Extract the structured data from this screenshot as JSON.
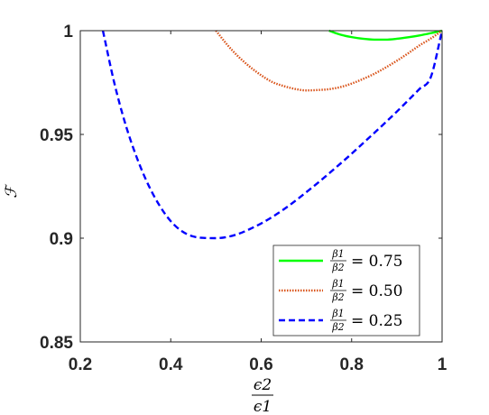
{
  "chart_data": {
    "type": "line",
    "title": "",
    "xlabel": {
      "numerator": "ϵ2",
      "denominator": "ϵ1"
    },
    "ylabel": "ℱ",
    "xlim": [
      0.2,
      1.0
    ],
    "ylim": [
      0.85,
      1.0
    ],
    "xticks": [
      0.2,
      0.4,
      0.6,
      0.8,
      1
    ],
    "xtick_labels": [
      "0.2",
      "0.4",
      "0.6",
      "0.8",
      "1"
    ],
    "yticks": [
      0.85,
      0.9,
      0.95,
      1
    ],
    "ytick_labels": [
      "0.85",
      "0.9",
      "0.95",
      "1"
    ],
    "grid": false,
    "legend_position": "bottom-right",
    "series": [
      {
        "name": "β1/β2 = 0.75",
        "legend_num": "β1",
        "legend_den": "β2",
        "legend_value": "= 0.75",
        "color": "#00ff00",
        "style": "solid",
        "x": [
          0.75,
          0.775,
          0.8,
          0.825,
          0.85,
          0.875,
          0.9,
          0.925,
          0.95,
          0.975,
          1.0
        ],
        "y": [
          1.0,
          0.9981,
          0.9969,
          0.9961,
          0.9957,
          0.9957,
          0.9961,
          0.9968,
          0.9977,
          0.9988,
          1.0
        ]
      },
      {
        "name": "β1/β2 = 0.50",
        "legend_num": "β1",
        "legend_den": "β2",
        "legend_value": "= 0.50",
        "color": "#d95319",
        "style": "dotted",
        "x": [
          0.5,
          0.525,
          0.55,
          0.575,
          0.6,
          0.625,
          0.65,
          0.675,
          0.7,
          0.725,
          0.75,
          0.775,
          0.8,
          0.825,
          0.85,
          0.875,
          0.9,
          0.925,
          0.95,
          0.975,
          1.0
        ],
        "y": [
          1.0,
          0.9932,
          0.9874,
          0.9826,
          0.9785,
          0.9752,
          0.9733,
          0.9719,
          0.9712,
          0.9714,
          0.9718,
          0.9728,
          0.9745,
          0.9767,
          0.9792,
          0.9822,
          0.9855,
          0.9891,
          0.9929,
          0.9962,
          1.0
        ]
      },
      {
        "name": "β1/β2 = 0.25",
        "legend_num": "β1",
        "legend_den": "β2",
        "legend_value": "= 0.25",
        "color": "#0000ff",
        "style": "dashed",
        "x": [
          0.25,
          0.275,
          0.3,
          0.325,
          0.35,
          0.375,
          0.4,
          0.425,
          0.45,
          0.475,
          0.5,
          0.525,
          0.55,
          0.575,
          0.6,
          0.625,
          0.65,
          0.675,
          0.7,
          0.725,
          0.75,
          0.775,
          0.8,
          0.825,
          0.85,
          0.875,
          0.9,
          0.925,
          0.95,
          0.975,
          1.0
        ],
        "y": [
          1.0,
          0.975,
          0.9548,
          0.9388,
          0.9259,
          0.9158,
          0.9082,
          0.9033,
          0.9008,
          0.9001,
          0.9,
          0.9006,
          0.9021,
          0.9044,
          0.9071,
          0.9103,
          0.9139,
          0.9179,
          0.9222,
          0.9266,
          0.9312,
          0.9359,
          0.9407,
          0.9457,
          0.9507,
          0.9558,
          0.961,
          0.9664,
          0.9719,
          0.9776,
          1.0
        ]
      }
    ]
  }
}
